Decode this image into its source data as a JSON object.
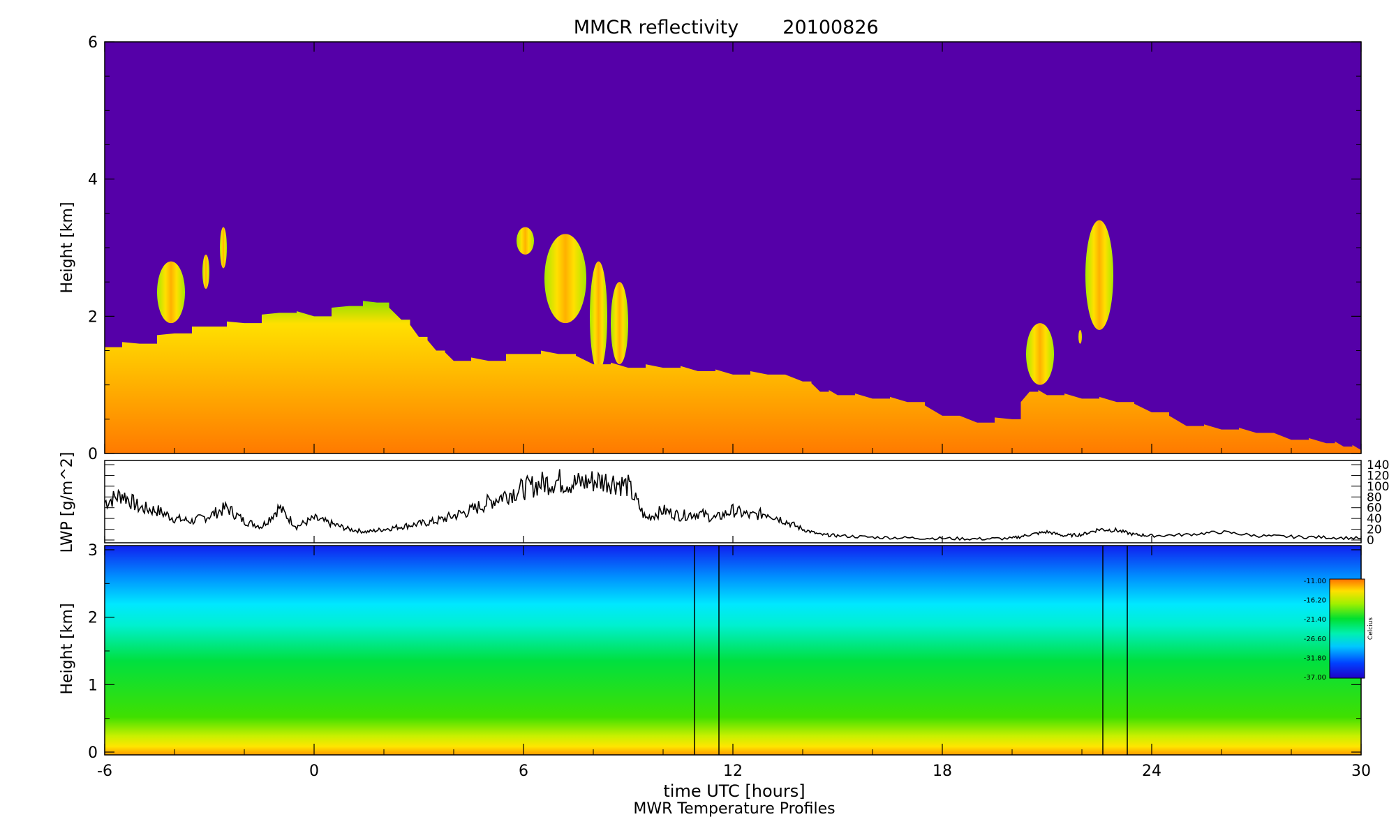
{
  "title": "MMCR reflectivity",
  "date": "20100826",
  "chart_data": [
    {
      "type": "heatmap",
      "name": "MMCR reflectivity",
      "ylabel": "Height [km]",
      "xlim": [
        -6,
        30
      ],
      "ylim": [
        0,
        6
      ],
      "yticks": [
        0,
        2,
        4,
        6
      ],
      "background_color": "#5500a8",
      "cloud_top_km": {
        "x": [
          -6,
          -5,
          -4,
          -3,
          -2,
          -1,
          0,
          1,
          1.8,
          2.5,
          3,
          3.5,
          4,
          5,
          6,
          7,
          8,
          9,
          10,
          11,
          12,
          13,
          14,
          14.5,
          15,
          16,
          17,
          18,
          19,
          20,
          20.5,
          21,
          22,
          23,
          24,
          25,
          26,
          27,
          28,
          29,
          29.5,
          30
        ],
        "y": [
          1.55,
          1.6,
          1.75,
          1.85,
          1.9,
          2.05,
          2.0,
          2.15,
          2.2,
          1.95,
          1.7,
          1.5,
          1.35,
          1.35,
          1.45,
          1.45,
          1.3,
          1.25,
          1.25,
          1.2,
          1.15,
          1.15,
          1.05,
          0.9,
          0.85,
          0.8,
          0.75,
          0.55,
          0.45,
          0.5,
          0.9,
          0.85,
          0.8,
          0.75,
          0.6,
          0.4,
          0.35,
          0.3,
          0.2,
          0.15,
          0.1,
          0.05
        ]
      },
      "cloud_patches": [
        {
          "x": [
            -4.5,
            -3.7
          ],
          "y": [
            1.9,
            2.8
          ]
        },
        {
          "x": [
            -3.2,
            -3.0
          ],
          "y": [
            2.4,
            2.9
          ]
        },
        {
          "x": [
            -2.7,
            -2.5
          ],
          "y": [
            2.7,
            3.3
          ]
        },
        {
          "x": [
            5.8,
            6.3
          ],
          "y": [
            2.9,
            3.3
          ]
        },
        {
          "x": [
            6.6,
            7.8
          ],
          "y": [
            1.9,
            3.2
          ]
        },
        {
          "x": [
            7.9,
            8.4
          ],
          "y": [
            1.2,
            2.8
          ]
        },
        {
          "x": [
            8.5,
            9.0
          ],
          "y": [
            1.3,
            2.5
          ]
        },
        {
          "x": [
            20.4,
            21.2
          ],
          "y": [
            1.0,
            1.9
          ]
        },
        {
          "x": [
            21.9,
            22.0
          ],
          "y": [
            1.6,
            1.8
          ]
        },
        {
          "x": [
            22.1,
            22.9
          ],
          "y": [
            1.8,
            3.4
          ]
        }
      ]
    },
    {
      "type": "line",
      "name": "LWP",
      "ylabel": "LWP [g/m^2]",
      "xlim": [
        -6,
        30
      ],
      "ylim": [
        0,
        140
      ],
      "yticks": [
        0,
        20,
        40,
        60,
        80,
        100,
        120,
        140
      ],
      "x": [
        -6,
        -5.5,
        -5,
        -4.5,
        -4,
        -3.5,
        -3,
        -2.5,
        -2,
        -1.5,
        -1,
        -0.5,
        0,
        0.5,
        1,
        1.5,
        2,
        2.5,
        3,
        3.5,
        4,
        4.5,
        5,
        5.5,
        6,
        6.5,
        7,
        7.5,
        8,
        8.5,
        9,
        9.5,
        10,
        10.5,
        11,
        11.5,
        12,
        12.5,
        13,
        13.5,
        14,
        14.5,
        15,
        16,
        17,
        18,
        19,
        20,
        20.5,
        21,
        21.5,
        22,
        22.5,
        23,
        23.5,
        24,
        25,
        26,
        27,
        28,
        29,
        30
      ],
      "y": [
        70,
        85,
        60,
        55,
        40,
        35,
        45,
        60,
        35,
        25,
        60,
        25,
        40,
        30,
        20,
        15,
        20,
        25,
        30,
        35,
        45,
        55,
        70,
        85,
        95,
        105,
        110,
        105,
        110,
        110,
        100,
        40,
        55,
        45,
        50,
        40,
        55,
        45,
        50,
        35,
        20,
        10,
        8,
        5,
        4,
        3,
        2,
        3,
        10,
        15,
        8,
        10,
        20,
        18,
        10,
        8,
        10,
        15,
        8,
        6,
        5,
        3
      ]
    },
    {
      "type": "heatmap",
      "name": "MWR Temperature Profiles",
      "ylabel": "Height [km]",
      "xlabel": "time UTC [hours]",
      "subtitle": "MWR Temperature Profiles",
      "xlim": [
        -6,
        30
      ],
      "ylim": [
        0,
        3
      ],
      "xticks": [
        -6,
        0,
        6,
        12,
        18,
        24,
        30
      ],
      "yticks": [
        0,
        1,
        2,
        3
      ],
      "gaps": [
        [
          10.9,
          11.6
        ],
        [
          22.6,
          23.3
        ]
      ],
      "colorbar": {
        "label": "Celcius",
        "ticks": [
          "-11.00",
          "-16.20",
          "-21.40",
          "-26.60",
          "-31.80",
          "-37.00"
        ]
      }
    }
  ]
}
